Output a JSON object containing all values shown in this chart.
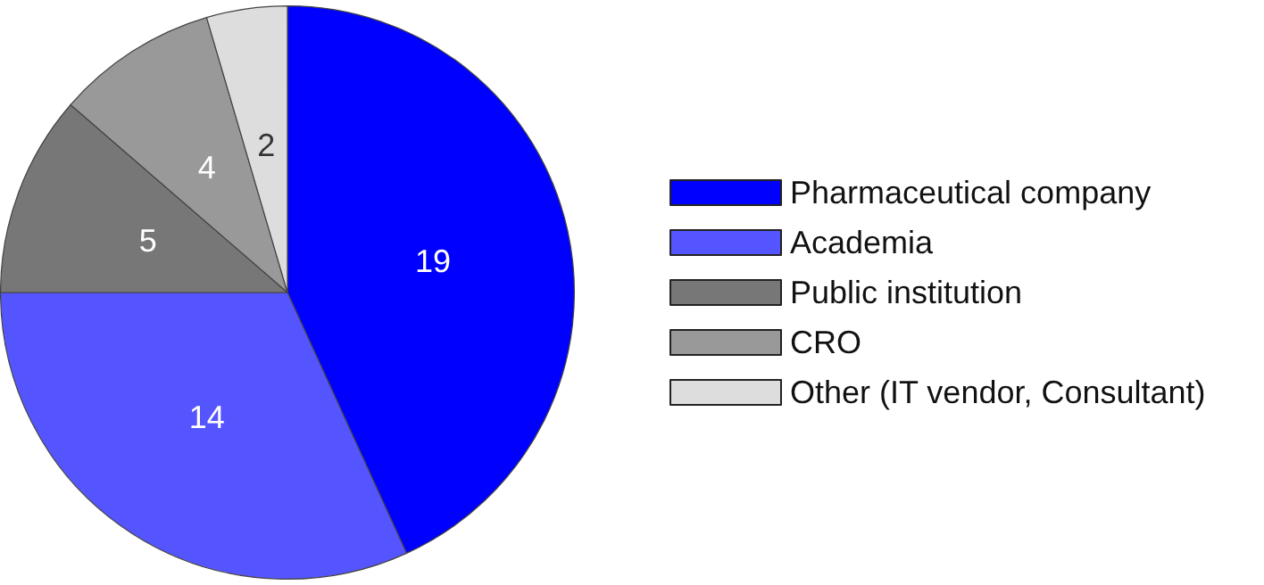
{
  "chart_data": {
    "type": "pie",
    "categories": [
      "Pharmaceutical company",
      "Academia",
      "Public institution",
      "CRO",
      "Other (IT vendor, Consultant)"
    ],
    "values": [
      19,
      14,
      5,
      4,
      2
    ],
    "colors": [
      "#0000ff",
      "#5555ff",
      "#777777",
      "#999999",
      "#dddddd"
    ],
    "data_labels": true,
    "legend": "right"
  }
}
